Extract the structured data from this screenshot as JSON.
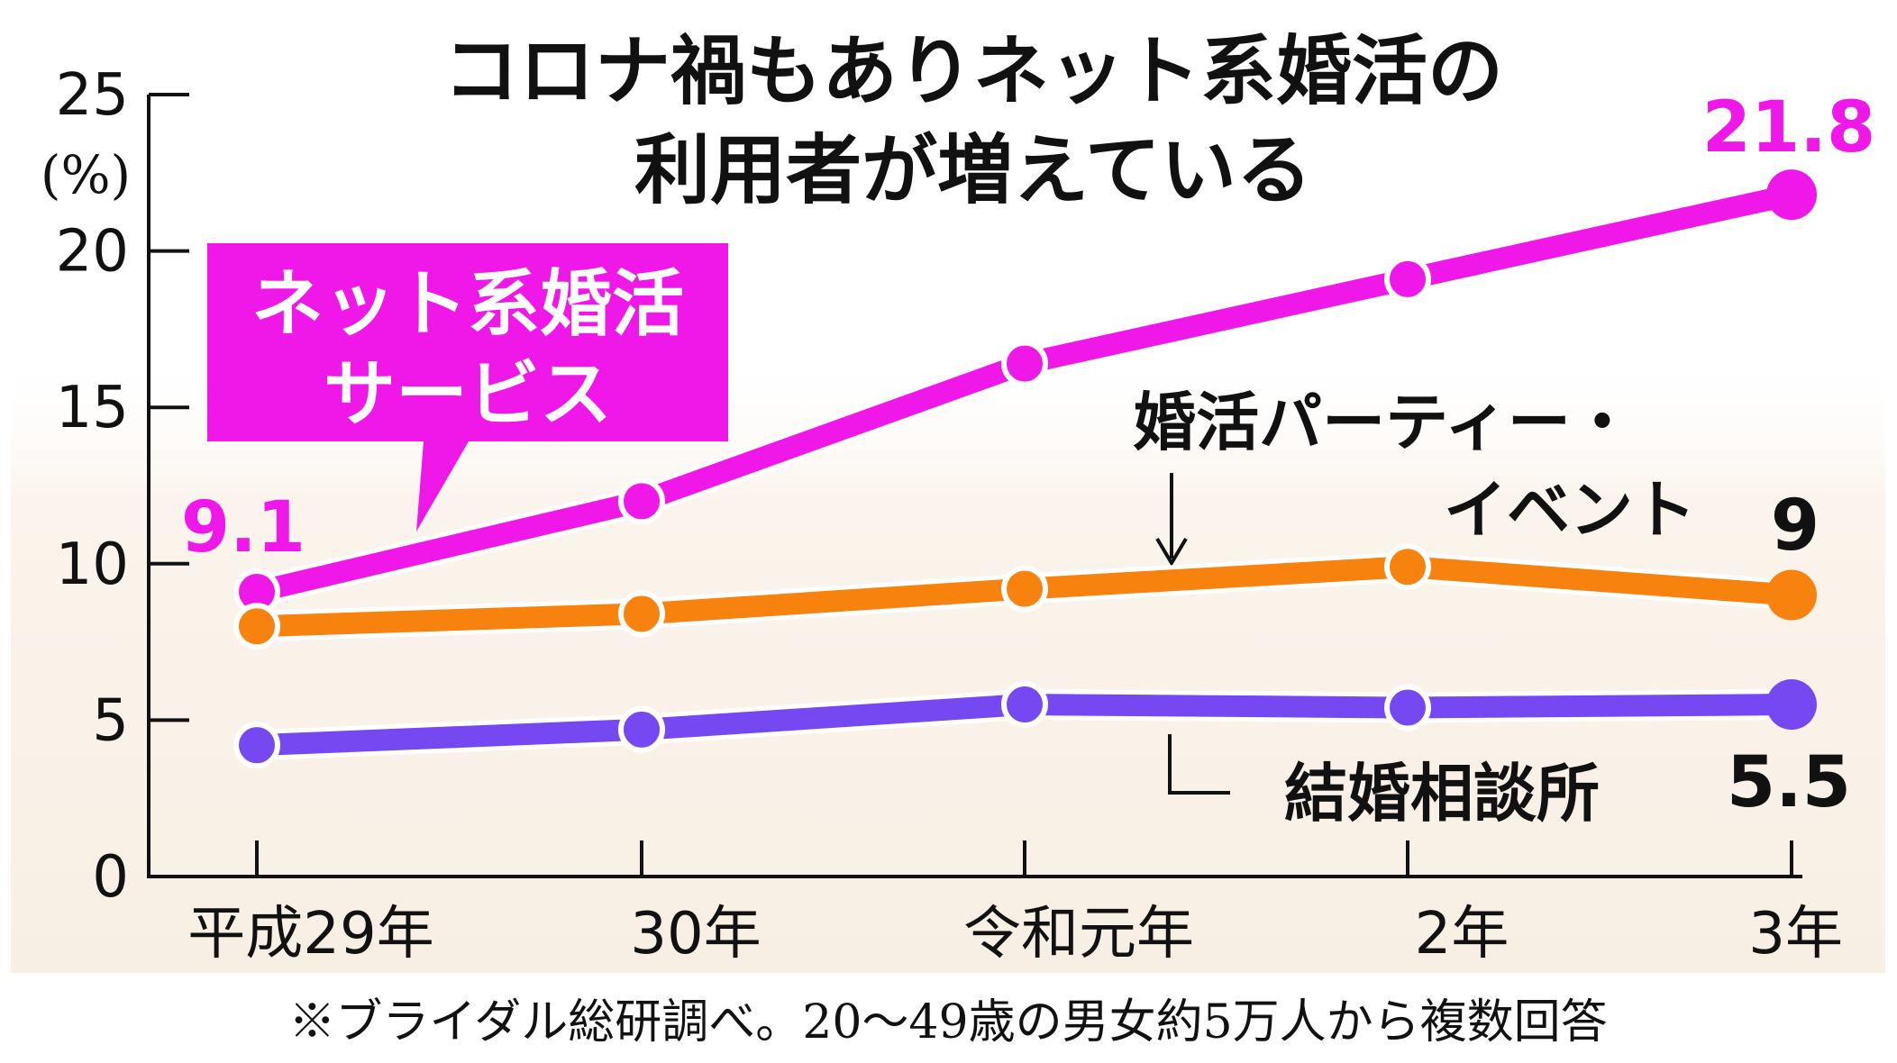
{
  "chart_data": {
    "type": "line",
    "title_lines": [
      "コロナ禍もありネット系婚活の",
      "利用者が増えている"
    ],
    "y_unit": "(%)",
    "ylim": [
      0,
      25
    ],
    "y_ticks": [
      "0",
      "5",
      "10",
      "15",
      "20",
      "25"
    ],
    "y_tick_values": [
      0,
      5,
      10,
      15,
      20,
      25
    ],
    "categories": [
      "平成29年",
      "30年",
      "令和元年",
      "2年",
      "3年"
    ],
    "series": [
      {
        "name": "ネット系婚活サービス",
        "label_lines": [
          "ネット系婚活",
          "サービス"
        ],
        "color": "#f018e8",
        "values": [
          9.1,
          12.0,
          16.4,
          19.1,
          21.8
        ],
        "end_labels": [
          "9.1",
          "21.8"
        ]
      },
      {
        "name": "婚活パーティー・イベント",
        "label_lines": [
          "婚活パーティー・",
          "イベント"
        ],
        "color": "#f7820d",
        "values": [
          8.0,
          8.4,
          9.2,
          9.9,
          9.0
        ],
        "end_labels": [
          "",
          "9"
        ]
      },
      {
        "name": "結婚相談所",
        "label_lines": [
          "結婚相談所"
        ],
        "color": "#7648f2",
        "values": [
          4.2,
          4.7,
          5.5,
          5.4,
          5.5
        ],
        "end_labels": [
          "",
          "5.5"
        ]
      }
    ],
    "background_color": "#fbf4ec",
    "grid": false,
    "footnote": "※ブライダル総研調べ。20〜49歳の男女約5万人から複数回答"
  }
}
